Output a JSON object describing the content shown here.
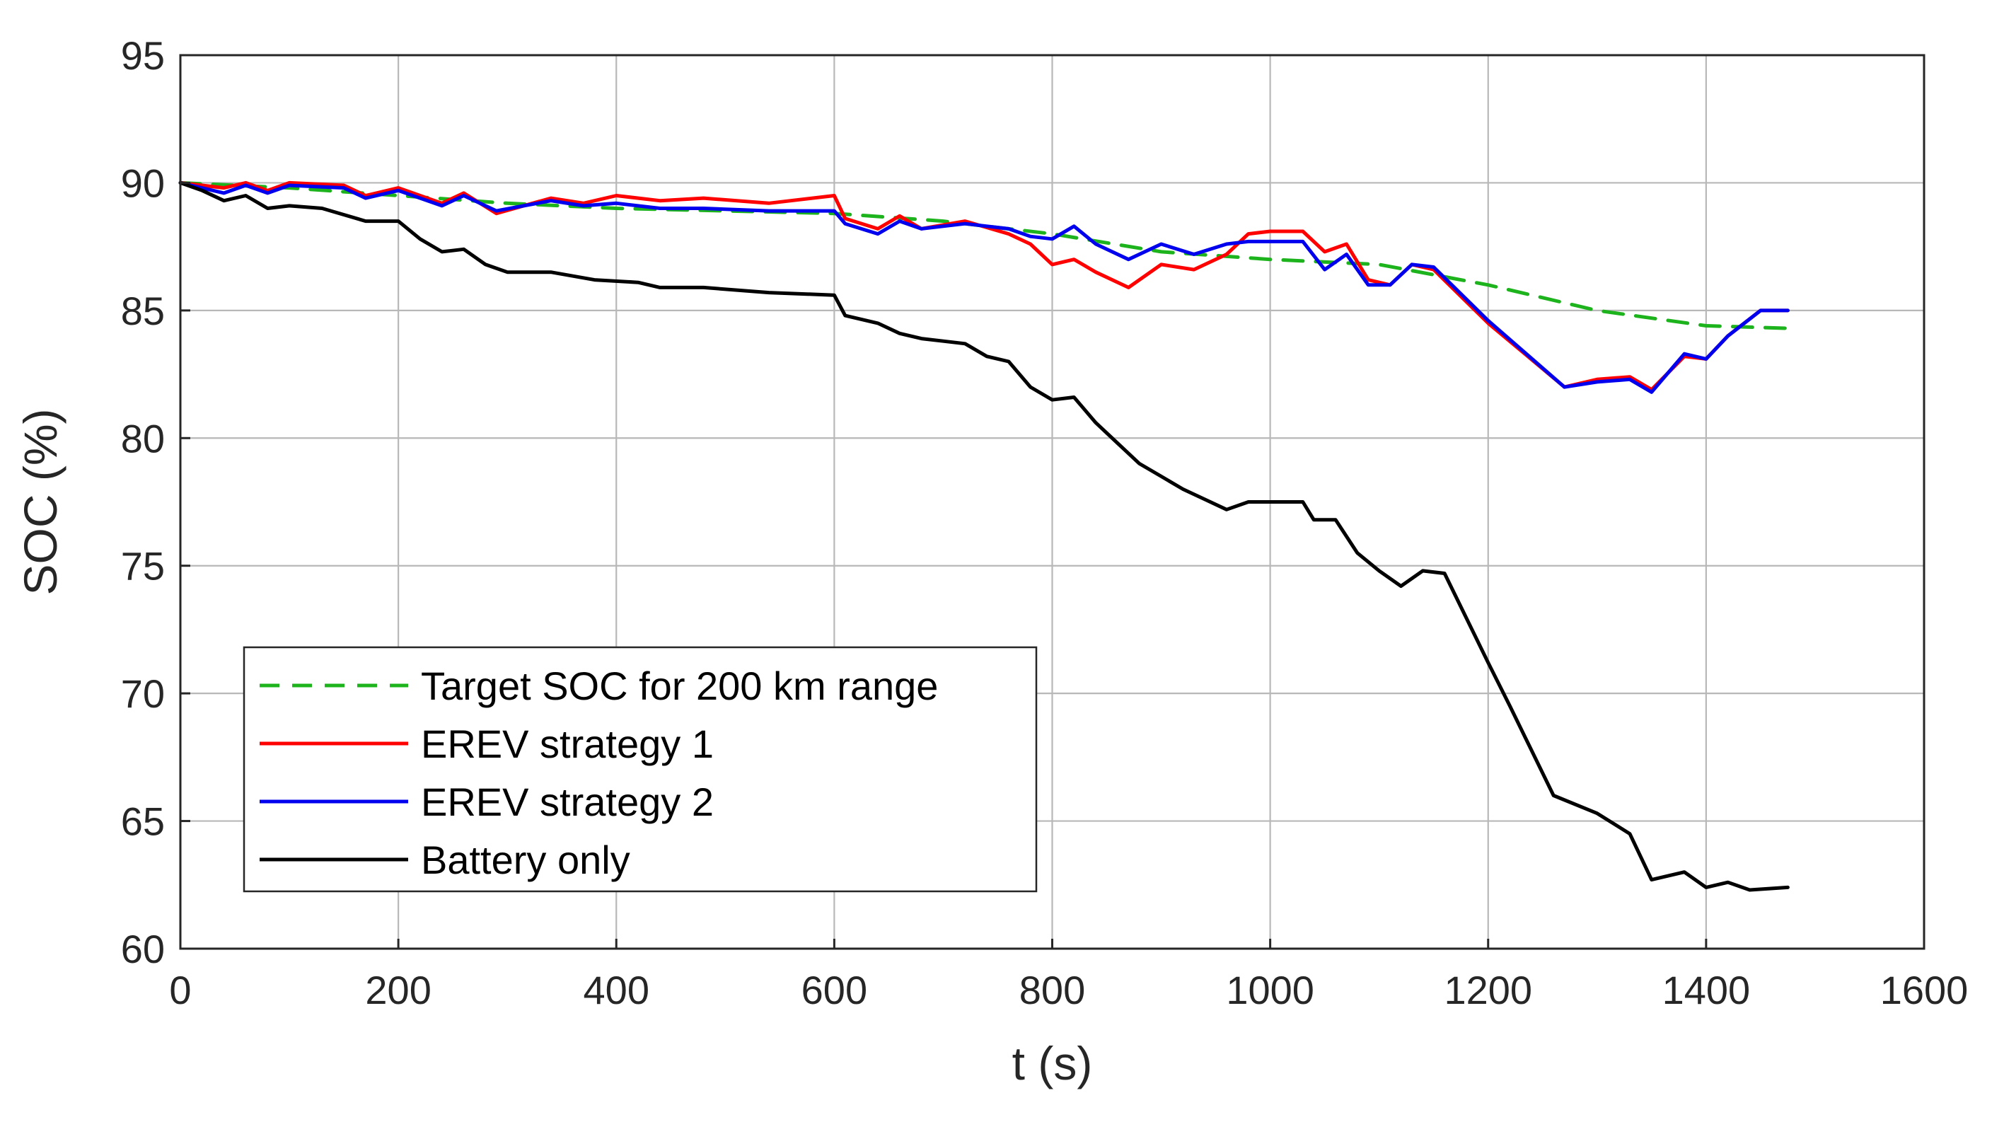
{
  "chart_data": {
    "type": "line",
    "title": "",
    "xlabel": "t (s)",
    "ylabel": "SOC (%)",
    "xlim": [
      0,
      1600
    ],
    "ylim": [
      60,
      95
    ],
    "xticks": [
      0,
      200,
      400,
      600,
      800,
      1000,
      1200,
      1400,
      1600
    ],
    "yticks": [
      60,
      65,
      70,
      75,
      80,
      85,
      90,
      95
    ],
    "grid": true,
    "legend_position": "lower-left",
    "series": [
      {
        "name": "Target SOC for 200 km range",
        "color": "#1db31d",
        "dash": "dashed",
        "x": [
          0,
          100,
          200,
          300,
          400,
          500,
          600,
          700,
          800,
          900,
          1000,
          1100,
          1200,
          1300,
          1400,
          1475
        ],
        "y": [
          90,
          89.8,
          89.5,
          89.2,
          89.0,
          88.9,
          88.8,
          88.5,
          88.0,
          87.3,
          87.0,
          86.8,
          86.0,
          85.0,
          84.4,
          84.3
        ]
      },
      {
        "name": "EREV strategy 1",
        "color": "#ff0000",
        "dash": "solid",
        "x": [
          0,
          40,
          60,
          80,
          100,
          150,
          170,
          200,
          240,
          260,
          290,
          340,
          370,
          400,
          440,
          480,
          540,
          600,
          610,
          640,
          660,
          680,
          720,
          760,
          780,
          800,
          820,
          840,
          870,
          900,
          930,
          960,
          980,
          1000,
          1030,
          1050,
          1070,
          1090,
          1110,
          1130,
          1150,
          1200,
          1270,
          1300,
          1330,
          1350,
          1380,
          1400,
          1420,
          1450,
          1475
        ],
        "y": [
          90,
          89.8,
          90.0,
          89.7,
          90.0,
          89.9,
          89.5,
          89.8,
          89.2,
          89.6,
          88.8,
          89.4,
          89.2,
          89.5,
          89.3,
          89.4,
          89.2,
          89.5,
          88.6,
          88.2,
          88.7,
          88.2,
          88.5,
          88.0,
          87.6,
          86.8,
          87.0,
          86.5,
          85.9,
          86.8,
          86.6,
          87.2,
          88.0,
          88.1,
          88.1,
          87.3,
          87.6,
          86.2,
          86.0,
          86.8,
          86.6,
          84.5,
          82.0,
          82.3,
          82.4,
          81.9,
          83.2,
          83.1,
          84.0,
          85.0,
          85.0
        ]
      },
      {
        "name": "EREV strategy 2",
        "color": "#0000ee",
        "dash": "solid",
        "x": [
          0,
          40,
          60,
          80,
          100,
          150,
          170,
          200,
          240,
          260,
          290,
          340,
          370,
          400,
          440,
          480,
          540,
          600,
          610,
          640,
          660,
          680,
          720,
          760,
          780,
          800,
          820,
          840,
          870,
          900,
          930,
          960,
          980,
          1000,
          1030,
          1050,
          1070,
          1090,
          1110,
          1130,
          1150,
          1200,
          1270,
          1300,
          1330,
          1350,
          1380,
          1400,
          1420,
          1450,
          1475
        ],
        "y": [
          90,
          89.6,
          89.9,
          89.6,
          89.9,
          89.8,
          89.4,
          89.7,
          89.1,
          89.5,
          88.9,
          89.3,
          89.1,
          89.2,
          89.0,
          89.0,
          88.9,
          88.9,
          88.4,
          88.0,
          88.5,
          88.2,
          88.4,
          88.2,
          87.9,
          87.8,
          88.3,
          87.6,
          87.0,
          87.6,
          87.2,
          87.6,
          87.7,
          87.7,
          87.7,
          86.6,
          87.2,
          86.0,
          86.0,
          86.8,
          86.7,
          84.6,
          82.0,
          82.2,
          82.3,
          81.8,
          83.3,
          83.1,
          84.0,
          85.0,
          85.0
        ]
      },
      {
        "name": "Battery only",
        "color": "#000000",
        "dash": "solid",
        "x": [
          0,
          20,
          40,
          60,
          80,
          100,
          130,
          170,
          200,
          220,
          240,
          260,
          280,
          300,
          340,
          380,
          420,
          440,
          480,
          540,
          600,
          610,
          640,
          660,
          680,
          700,
          720,
          740,
          760,
          780,
          800,
          820,
          840,
          860,
          880,
          900,
          920,
          940,
          960,
          980,
          1000,
          1030,
          1040,
          1060,
          1080,
          1100,
          1120,
          1140,
          1160,
          1200,
          1220,
          1260,
          1300,
          1330,
          1350,
          1380,
          1400,
          1420,
          1440,
          1475
        ],
        "y": [
          90,
          89.7,
          89.3,
          89.5,
          89.0,
          89.1,
          89.0,
          88.5,
          88.5,
          87.8,
          87.3,
          87.4,
          86.8,
          86.5,
          86.5,
          86.2,
          86.1,
          85.9,
          85.9,
          85.7,
          85.6,
          84.8,
          84.5,
          84.1,
          83.9,
          83.8,
          83.7,
          83.2,
          83.0,
          82.0,
          81.5,
          81.6,
          80.6,
          79.8,
          79.0,
          78.5,
          78.0,
          77.6,
          77.2,
          77.5,
          77.5,
          77.5,
          76.8,
          76.8,
          75.5,
          74.8,
          74.2,
          74.8,
          74.7,
          71.2,
          69.5,
          66.0,
          65.3,
          64.5,
          62.7,
          63.0,
          62.4,
          62.6,
          62.3,
          62.4
        ]
      }
    ]
  }
}
